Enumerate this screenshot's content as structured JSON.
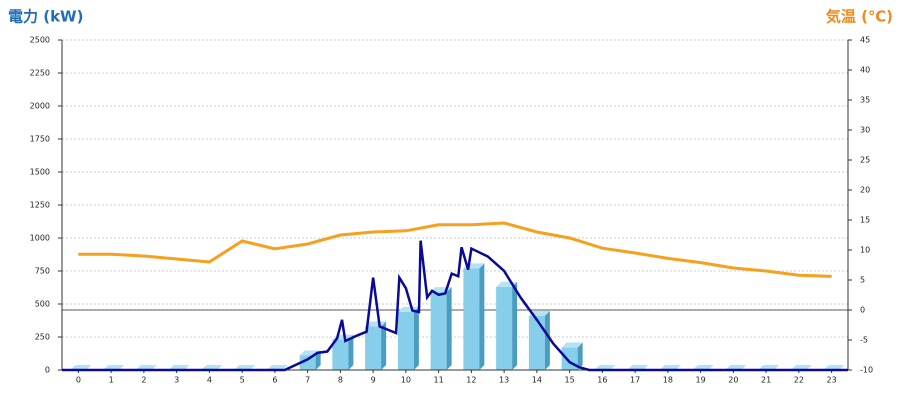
{
  "chart_data": {
    "type": "bar",
    "y_label": "電力 (kW)",
    "y2_label": "気温 (℃)",
    "categories": [
      "0",
      "1",
      "2",
      "3",
      "4",
      "5",
      "6",
      "7",
      "8",
      "9",
      "10",
      "11",
      "12",
      "13",
      "14",
      "15",
      "16",
      "17",
      "18",
      "19",
      "20",
      "21",
      "22",
      "23"
    ],
    "bars": {
      "color": "#87ceeb",
      "values": [
        0,
        0,
        0,
        0,
        0,
        0,
        0,
        110,
        230,
        330,
        440,
        590,
        770,
        630,
        410,
        170,
        0,
        0,
        0,
        0,
        0,
        0,
        0,
        0
      ]
    },
    "power_line": {
      "color": "#0a0a96",
      "x": [
        -0.5,
        6.3,
        7.0,
        7.3,
        7.6,
        7.9,
        8.05,
        8.15,
        8.5,
        8.8,
        9.0,
        9.2,
        9.5,
        9.7,
        9.8,
        10.0,
        10.2,
        10.4,
        10.45,
        10.65,
        10.8,
        11.0,
        11.2,
        11.4,
        11.6,
        11.7,
        11.9,
        12.0,
        12.5,
        13.0,
        13.5,
        14.0,
        14.5,
        15.0,
        15.3,
        15.6,
        23.5
      ],
      "values": [
        0,
        0,
        80,
        130,
        140,
        240,
        380,
        220,
        260,
        290,
        700,
        330,
        300,
        280,
        700,
        620,
        450,
        440,
        980,
        550,
        600,
        570,
        580,
        730,
        710,
        930,
        760,
        920,
        860,
        750,
        550,
        380,
        200,
        60,
        20,
        0,
        0
      ]
    },
    "temperature": {
      "color": "#f5a01e",
      "axis": "y2",
      "values": [
        9.3,
        9.3,
        9,
        8.5,
        8,
        11.5,
        10.2,
        11,
        12.5,
        13,
        13.2,
        14.2,
        14.2,
        14.5,
        13,
        12,
        10.3,
        9.5,
        8.6,
        7.9,
        7,
        6.5,
        5.8,
        5.6
      ]
    },
    "xlim": [
      -0.5,
      23.5
    ],
    "ylim": [
      0,
      2500
    ],
    "yticks": [
      0,
      250,
      500,
      750,
      1000,
      1250,
      1500,
      1750,
      2000,
      2250,
      2500
    ],
    "y2lim": [
      -10,
      45
    ],
    "y2ticks": [
      -10,
      -5,
      0,
      5,
      10,
      15,
      20,
      25,
      30,
      35,
      40,
      45
    ],
    "grid": true
  }
}
